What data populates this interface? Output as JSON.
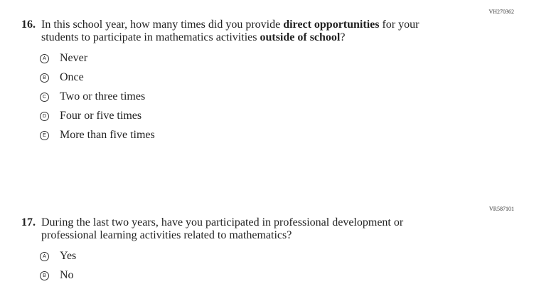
{
  "questions": [
    {
      "id": "VH270362",
      "number": "16.",
      "segments": [
        "In this school year, how many times did you provide ",
        "direct opportunities",
        " for your students to participate in mathematics activities ",
        "outside of school",
        "?"
      ],
      "options": [
        {
          "letter": "A",
          "label": "Never"
        },
        {
          "letter": "B",
          "label": "Once"
        },
        {
          "letter": "C",
          "label": "Two or three times"
        },
        {
          "letter": "D",
          "label": "Four or five times"
        },
        {
          "letter": "E",
          "label": "More than five times"
        }
      ]
    },
    {
      "id": "VR587101",
      "number": "17.",
      "text": "During the last two years, have you participated in professional development or professional learning activities related to mathematics?",
      "options": [
        {
          "letter": "A",
          "label": "Yes"
        },
        {
          "letter": "B",
          "label": "No"
        }
      ]
    }
  ]
}
